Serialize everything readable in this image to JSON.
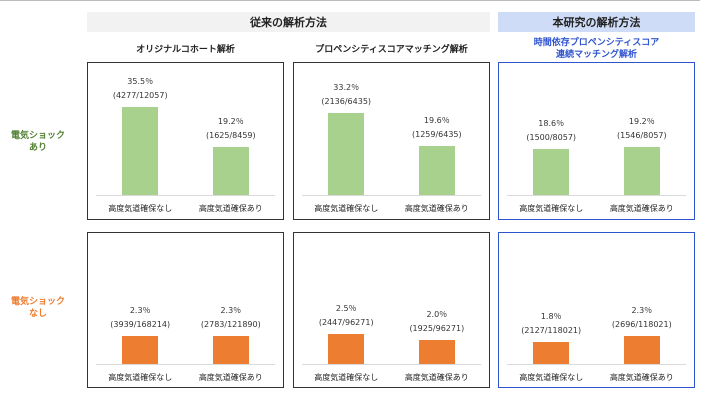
{
  "headers": {
    "conventional": "従来の解析方法",
    "proposed": "本研究の解析方法"
  },
  "colors": {
    "shock": "#a9d18e",
    "noshock": "#ed7d31",
    "shock_label": "#548235",
    "noshock_label": "#ed7d31",
    "blue": "#2f54d0"
  },
  "chart_data": {
    "type": "bar",
    "row_labels": [
      "電気ショック\nあり",
      "電気ショック\nなし"
    ],
    "row_label_lines": [
      [
        "電気ショック",
        "あり"
      ],
      [
        "電気ショック",
        "なし"
      ]
    ],
    "categories": [
      "高度気道確保なし",
      "高度気道確保あり"
    ],
    "methods": [
      {
        "title_lines": [
          "オリジナルコホート解析"
        ],
        "rows": [
          {
            "values": [
              35.5,
              19.2
            ],
            "pct": [
              "35.5％",
              "19.2％"
            ],
            "frac": [
              "(4277/12057)",
              "(1625/8459)"
            ]
          },
          {
            "values": [
              2.3,
              2.3
            ],
            "pct": [
              "2.3％",
              "2.3％"
            ],
            "frac": [
              "(3939/168214)",
              "(2783/121890)"
            ]
          }
        ]
      },
      {
        "title_lines": [
          "プロペンシティスコアマッチング解析"
        ],
        "rows": [
          {
            "values": [
              33.2,
              19.6
            ],
            "pct": [
              "33.2％",
              "19.6％"
            ],
            "frac": [
              "(2136/6435)",
              "(1259/6435)"
            ]
          },
          {
            "values": [
              2.5,
              2.0
            ],
            "pct": [
              "2.5％",
              "2.0％"
            ],
            "frac": [
              "(2447/96271)",
              "(1925/96271)"
            ]
          }
        ]
      },
      {
        "title_lines": [
          "時間依存プロペンシティスコア",
          "連続マッチング解析"
        ],
        "rows": [
          {
            "values": [
              18.6,
              19.2
            ],
            "pct": [
              "18.6％",
              "19.2％"
            ],
            "frac": [
              "(1500/8057)",
              "(1546/8057)"
            ]
          },
          {
            "values": [
              1.8,
              2.3
            ],
            "pct": [
              "1.8％",
              "2.3％"
            ],
            "frac": [
              "(2127/118021)",
              "(2696/118021)"
            ]
          }
        ]
      }
    ]
  }
}
